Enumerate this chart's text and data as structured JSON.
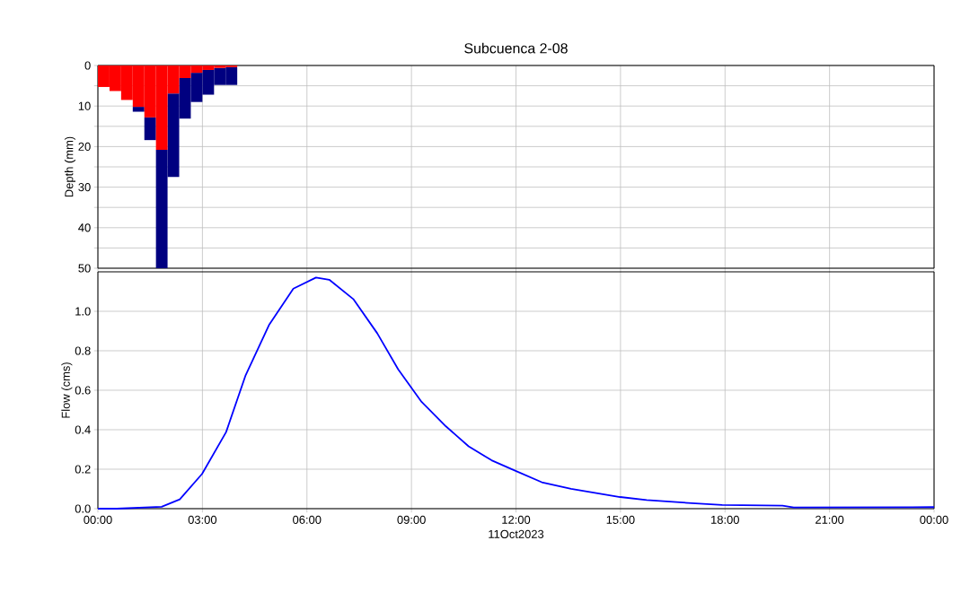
{
  "chart_data": [
    {
      "type": "bar",
      "title": "Subcuenca 2-08",
      "ylabel": "Depth (mm)",
      "stacked": true,
      "x": [
        0.167,
        0.5,
        0.833,
        1.167,
        1.5,
        1.833,
        2.167,
        2.5,
        2.833,
        3.167,
        3.5,
        3.833
      ],
      "series": [
        {
          "color": "#ff0000",
          "values": [
            5.3,
            6.3,
            8.5,
            10.2,
            12.8,
            20.8,
            6.9,
            3.1,
            1.8,
            1.1,
            0.6,
            0.4
          ]
        },
        {
          "color": "#000080",
          "values": [
            0,
            0,
            0,
            1.2,
            5.6,
            29.2,
            20.6,
            10.0,
            7.2,
            6.1,
            4.2,
            4.4
          ]
        }
      ],
      "xlim": [
        0,
        24
      ],
      "xticks": [
        {
          "value": 0,
          "label": null
        },
        {
          "value": 3,
          "label": null
        },
        {
          "value": 6,
          "label": null
        },
        {
          "value": 9,
          "label": null
        },
        {
          "value": 12,
          "label": null
        },
        {
          "value": 15,
          "label": null
        },
        {
          "value": 18,
          "label": null
        },
        {
          "value": 21,
          "label": null
        },
        {
          "value": 24,
          "label": null
        }
      ],
      "ylim": [
        50,
        0
      ],
      "yticks": [
        0,
        {
          "value": 5,
          "label": null
        },
        10,
        {
          "value": 15,
          "label": null
        },
        20,
        {
          "value": 25,
          "label": null
        },
        30,
        {
          "value": 35,
          "label": null
        },
        40,
        {
          "value": 45,
          "label": null
        },
        50
      ],
      "grid": true,
      "tick_labels": "y"
    },
    {
      "type": "line",
      "xlabel": "11Oct2023",
      "ylabel": "Flow (cms)",
      "series": [
        {
          "color": "#0000ff",
          "x": [
            0,
            0.54,
            1.83,
            2.35,
            2.99,
            3.68,
            4.24,
            4.92,
            5.61,
            6.26,
            6.64,
            7.33,
            8.02,
            8.62,
            9.29,
            9.99,
            10.64,
            11.3,
            11.96,
            12.74,
            13.58,
            14.99,
            15.75,
            16.94,
            17.92,
            19.65,
            19.97,
            24
          ],
          "values": [
            0,
            0,
            0.01,
            0.047,
            0.176,
            0.388,
            0.676,
            0.933,
            1.115,
            1.171,
            1.16,
            1.062,
            0.888,
            0.706,
            0.541,
            0.417,
            0.316,
            0.245,
            0.194,
            0.134,
            0.101,
            0.059,
            0.044,
            0.029,
            0.019,
            0.015,
            0.006,
            0.008
          ]
        }
      ],
      "xlim": [
        0,
        24
      ],
      "xticks": [
        {
          "value": 0,
          "label": "00:00"
        },
        {
          "value": 3,
          "label": "03:00"
        },
        {
          "value": 6,
          "label": "06:00"
        },
        {
          "value": 9,
          "label": "09:00"
        },
        {
          "value": 12,
          "label": "12:00"
        },
        {
          "value": 15,
          "label": "15:00"
        },
        {
          "value": 18,
          "label": "18:00"
        },
        {
          "value": 21,
          "label": "21:00"
        },
        {
          "value": 24,
          "label": "00:00"
        }
      ],
      "ylim": [
        0,
        1.2
      ],
      "yticks": [
        {
          "value": 0,
          "label": "0.0"
        },
        {
          "value": 0.2,
          "label": "0.2"
        },
        {
          "value": 0.4,
          "label": "0.4"
        },
        {
          "value": 0.6,
          "label": "0.6"
        },
        {
          "value": 0.8,
          "label": "0.8"
        },
        {
          "value": 1.0,
          "label": "1.0"
        }
      ],
      "grid": true,
      "line_style": "solid",
      "marker": "none"
    }
  ]
}
